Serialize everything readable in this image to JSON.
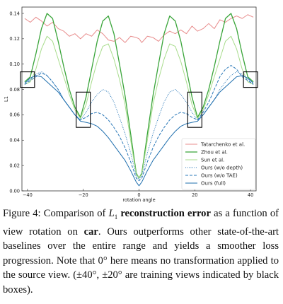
{
  "chart_data": {
    "type": "line",
    "xlabel": "rotation angle",
    "ylabel": "L1",
    "xlim": [
      -40,
      40
    ],
    "ylim": [
      0,
      0.145
    ],
    "xticks": [
      -40,
      -20,
      0,
      20,
      40
    ],
    "yticks": [
      0.0,
      0.02,
      0.04,
      0.06,
      0.08,
      0.1,
      0.12,
      0.14
    ],
    "grid": false,
    "legend_position": "lower-right",
    "x": [
      -41,
      -39,
      -37,
      -35,
      -33,
      -31,
      -29,
      -27,
      -25,
      -23,
      -21,
      -19,
      -17,
      -15,
      -13,
      -11,
      -9,
      -7,
      -5,
      -3,
      -1,
      0,
      1,
      3,
      5,
      7,
      9,
      11,
      13,
      15,
      17,
      19,
      21,
      23,
      25,
      27,
      29,
      31,
      33,
      35,
      37,
      39,
      41
    ],
    "series": [
      {
        "name": "Tatarchenko et al.",
        "color": "#e88c8c",
        "dash": "solid",
        "width": 1.0,
        "values": [
          0.136,
          0.133,
          0.137,
          0.134,
          0.13,
          0.133,
          0.128,
          0.126,
          0.122,
          0.124,
          0.12,
          0.124,
          0.122,
          0.127,
          0.124,
          0.119,
          0.118,
          0.121,
          0.117,
          0.122,
          0.121,
          0.12,
          0.117,
          0.122,
          0.121,
          0.118,
          0.123,
          0.126,
          0.124,
          0.127,
          0.124,
          0.13,
          0.126,
          0.128,
          0.132,
          0.128,
          0.135,
          0.133,
          0.136,
          0.138,
          0.136,
          0.139,
          0.137
        ]
      },
      {
        "name": "Zhou et al.",
        "color": "#3aa53a",
        "dash": "solid",
        "width": 1.3,
        "values": [
          0.086,
          0.09,
          0.108,
          0.128,
          0.14,
          0.136,
          0.118,
          0.098,
          0.08,
          0.066,
          0.058,
          0.074,
          0.096,
          0.118,
          0.134,
          0.138,
          0.124,
          0.1,
          0.075,
          0.045,
          0.014,
          0.01,
          0.014,
          0.045,
          0.075,
          0.1,
          0.124,
          0.138,
          0.134,
          0.118,
          0.096,
          0.074,
          0.058,
          0.066,
          0.08,
          0.098,
          0.118,
          0.136,
          0.14,
          0.128,
          0.108,
          0.09,
          0.086
        ]
      },
      {
        "name": "Sun et al.",
        "color": "#a8dc8c",
        "dash": "solid",
        "width": 1.0,
        "values": [
          0.084,
          0.086,
          0.096,
          0.112,
          0.122,
          0.118,
          0.104,
          0.09,
          0.076,
          0.064,
          0.057,
          0.068,
          0.086,
          0.102,
          0.114,
          0.116,
          0.104,
          0.088,
          0.068,
          0.04,
          0.013,
          0.01,
          0.013,
          0.04,
          0.068,
          0.088,
          0.104,
          0.116,
          0.114,
          0.102,
          0.086,
          0.068,
          0.057,
          0.064,
          0.076,
          0.09,
          0.104,
          0.118,
          0.122,
          0.112,
          0.096,
          0.086,
          0.084
        ]
      },
      {
        "name": "Ours (w/o depth)",
        "color": "#2a78b8",
        "dash": "1,1.5",
        "width": 1.0,
        "values": [
          0.084,
          0.088,
          0.092,
          0.094,
          0.091,
          0.086,
          0.08,
          0.072,
          0.066,
          0.06,
          0.056,
          0.062,
          0.07,
          0.076,
          0.08,
          0.078,
          0.07,
          0.058,
          0.045,
          0.03,
          0.012,
          0.009,
          0.012,
          0.03,
          0.045,
          0.058,
          0.07,
          0.078,
          0.08,
          0.076,
          0.07,
          0.062,
          0.056,
          0.06,
          0.066,
          0.072,
          0.08,
          0.086,
          0.091,
          0.094,
          0.092,
          0.088,
          0.084
        ]
      },
      {
        "name": "Ours (w/o TAE)",
        "color": "#2a78b8",
        "dash": "4,2",
        "width": 1.0,
        "values": [
          0.084,
          0.087,
          0.09,
          0.093,
          0.091,
          0.086,
          0.08,
          0.072,
          0.066,
          0.06,
          0.056,
          0.058,
          0.061,
          0.062,
          0.06,
          0.056,
          0.05,
          0.043,
          0.034,
          0.023,
          0.01,
          0.008,
          0.01,
          0.023,
          0.034,
          0.043,
          0.05,
          0.056,
          0.06,
          0.062,
          0.061,
          0.058,
          0.056,
          0.062,
          0.07,
          0.08,
          0.09,
          0.096,
          0.099,
          0.096,
          0.09,
          0.087,
          0.084
        ]
      },
      {
        "name": "Ours (full)",
        "color": "#1f6fae",
        "dash": "solid",
        "width": 1.0,
        "values": [
          0.085,
          0.089,
          0.091,
          0.09,
          0.086,
          0.082,
          0.078,
          0.072,
          0.066,
          0.06,
          0.055,
          0.054,
          0.053,
          0.051,
          0.047,
          0.042,
          0.036,
          0.03,
          0.024,
          0.016,
          0.007,
          0.004,
          0.007,
          0.016,
          0.024,
          0.03,
          0.036,
          0.042,
          0.047,
          0.051,
          0.053,
          0.054,
          0.055,
          0.06,
          0.066,
          0.072,
          0.078,
          0.082,
          0.086,
          0.09,
          0.091,
          0.089,
          0.085
        ]
      }
    ],
    "training_view_boxes": [
      -40,
      -20,
      20,
      40
    ]
  },
  "caption": {
    "fig_label": "Figure 4: Comparison of ",
    "l1_symbol": "L",
    "l1_sub": "1",
    "bold1": "reconstruction error",
    "part2": " as a function of view rotation on ",
    "bold2": "car",
    "part3": ". Ours outperforms other state-of-the-art baselines over the entire range and yields a smoother loss progression. Note that 0° here means no transformation applied to the source view. (±40°, ±20° are training views indicated by black boxes)."
  }
}
